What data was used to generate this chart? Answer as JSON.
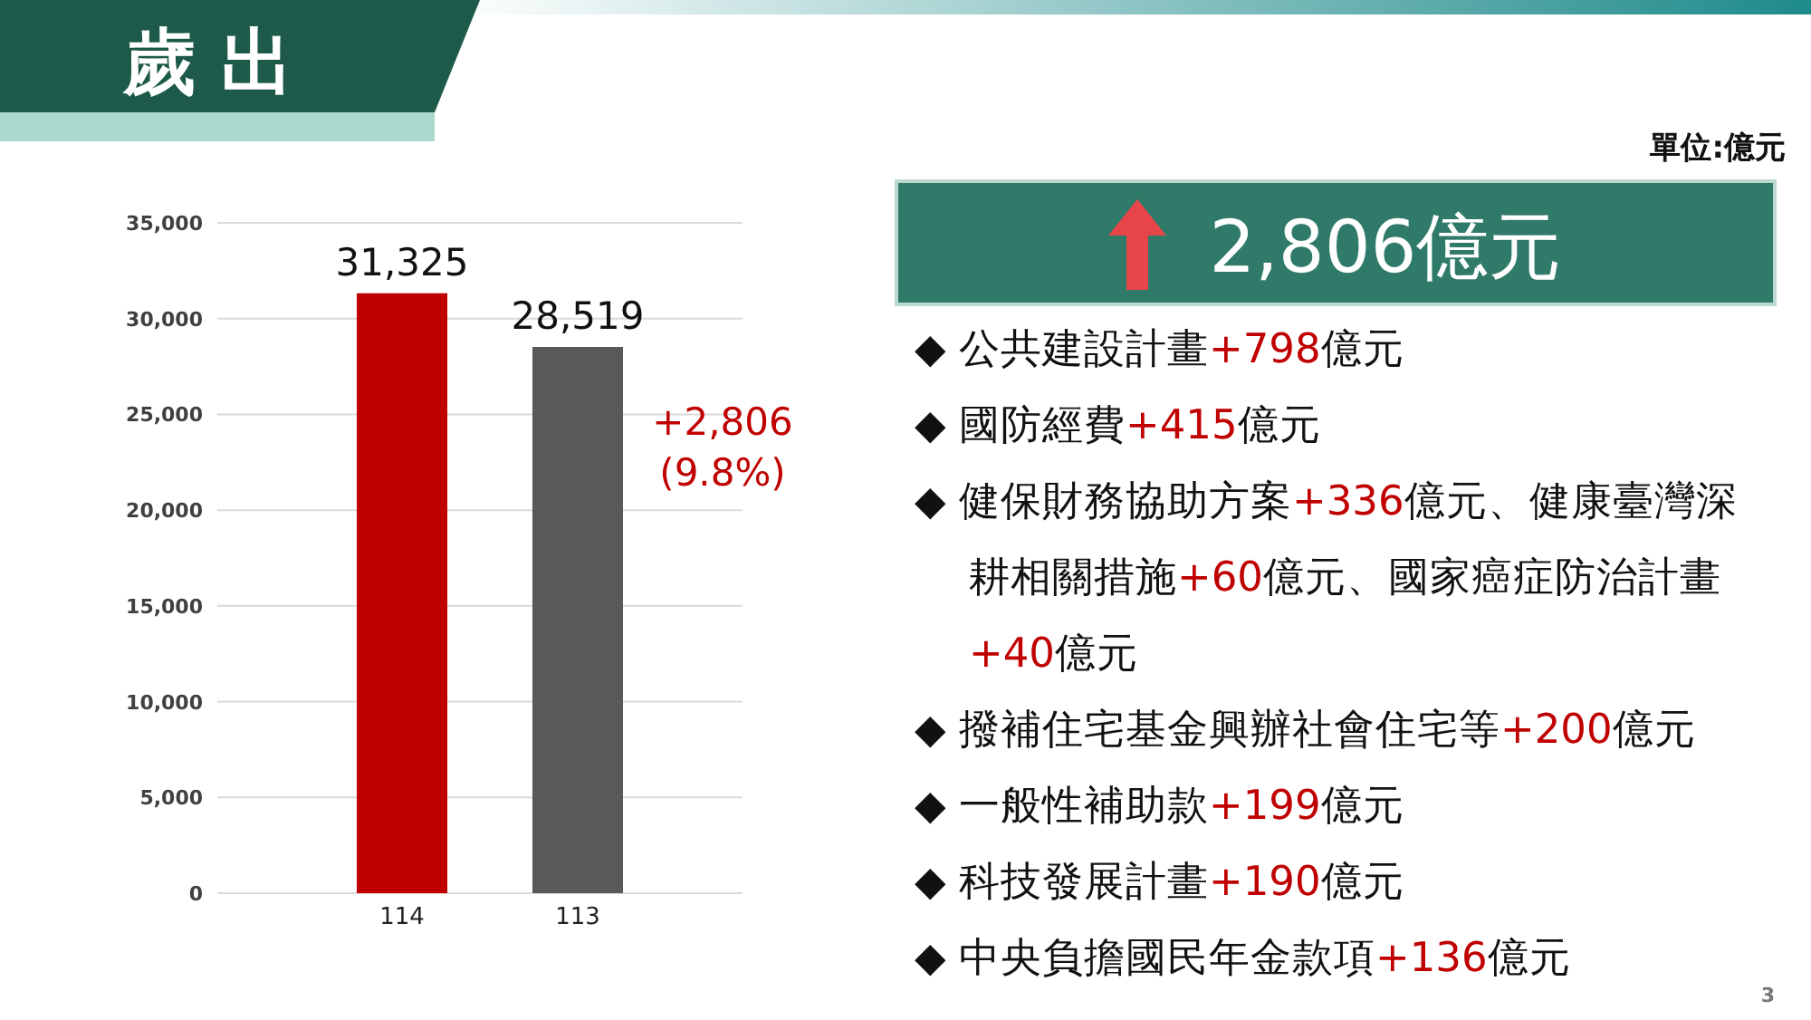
{
  "chart_data": {
    "type": "bar",
    "title": "歲 出",
    "categories": [
      "114",
      "113"
    ],
    "values": [
      31325,
      28519
    ],
    "colors": [
      "#c00000",
      "#595959"
    ],
    "ylim": [
      0,
      35000
    ],
    "yticks": [
      {
        "value": 0,
        "label": "0"
      },
      {
        "value": 5000,
        "label": "5,000"
      },
      {
        "value": 10000,
        "label": "10,000"
      },
      {
        "value": 15000,
        "label": "15,000"
      },
      {
        "value": 20000,
        "label": "20,000"
      },
      {
        "value": 25000,
        "label": "25,000"
      },
      {
        "value": 30000,
        "label": "30,000"
      },
      {
        "value": 35000,
        "label": "35,000"
      }
    ],
    "grid": "y",
    "value_labels": [
      "31,325",
      "28,519"
    ],
    "annotations": [
      "單位:億元",
      "+2,806 (9.8%)",
      "2,806億元",
      "◆ 公共建設計畫+798億元",
      "◆ 國防經費+415億元",
      "◆ 健保財務協助方案+336億元、健康臺灣深耕相關措施+60億元、國家癌症防治計畫+40億元",
      "◆ 撥補住宅基金興辦社會住宅等+200億元",
      "◆ 一般性補助款+199億元",
      "◆ 科技發展計畫+190億元",
      "◆ 中央負擔國民年金款項+136億元",
      "3"
    ]
  }
}
